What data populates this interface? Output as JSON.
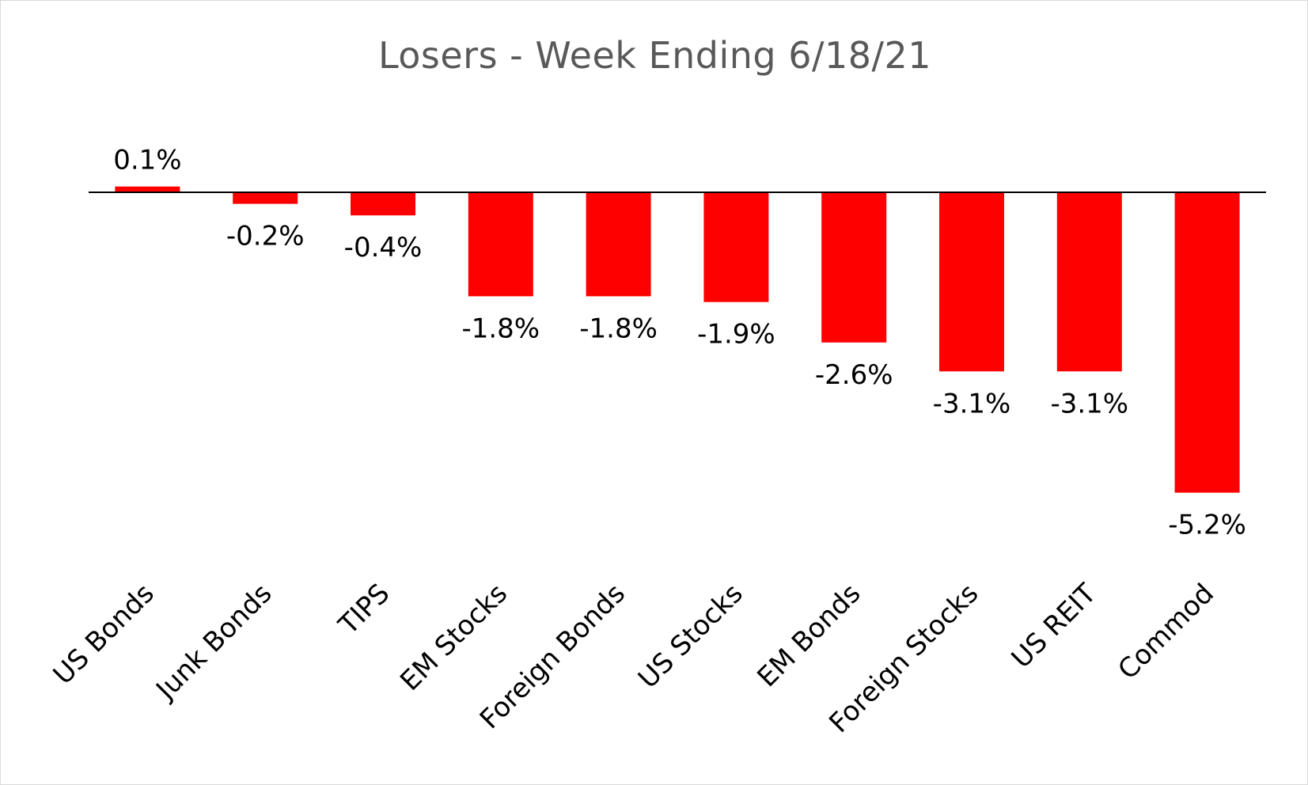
{
  "chart_data": {
    "type": "bar",
    "title": "Losers - Week Ending 6/18/21",
    "xlabel": "",
    "ylabel": "",
    "categories": [
      "US Bonds",
      "Junk Bonds",
      "TIPS",
      "EM Stocks",
      "Foreign Bonds",
      "US Stocks",
      "EM Bonds",
      "Foreign Stocks",
      "US REIT",
      "Commod"
    ],
    "values": [
      0.1,
      -0.2,
      -0.4,
      -1.8,
      -1.8,
      -1.9,
      -2.6,
      -3.1,
      -3.1,
      -5.2
    ],
    "data_labels": [
      "0.1%",
      "-0.2%",
      "-0.4%",
      "-1.8%",
      "-1.8%",
      "-1.9%",
      "-2.6%",
      "-3.1%",
      "-3.1%",
      "-5.2%"
    ],
    "bar_color": "#ff0000",
    "ylim": [
      -5.2,
      0.1
    ],
    "grid": false,
    "legend": "none"
  }
}
